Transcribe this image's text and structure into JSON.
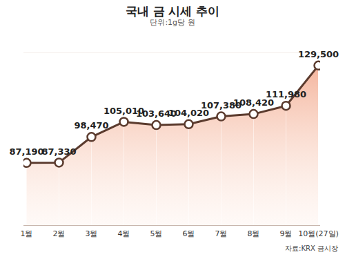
{
  "chart_data": {
    "type": "line",
    "title": "국내 금 시세 추이",
    "subtitle": "단위:1g당 원",
    "caption": "자료:KRX 금시장",
    "categories": [
      "1월",
      "2월",
      "3월",
      "4월",
      "5월",
      "6월",
      "7월",
      "8월",
      "9월",
      "10월(27일)"
    ],
    "values": [
      87190,
      87330,
      98470,
      105010,
      103640,
      104020,
      107380,
      108420,
      111980,
      129500
    ],
    "value_labels": [
      "87,190",
      "87,330",
      "98,470",
      "105,010",
      "103,640",
      "104,020",
      "107,380",
      "108,420",
      "111,980",
      "129,500"
    ],
    "color": "#5b3b2e",
    "marker": "circle",
    "data_labels": true,
    "tick_labels": "x",
    "ylim": [
      60000,
      135000
    ]
  }
}
